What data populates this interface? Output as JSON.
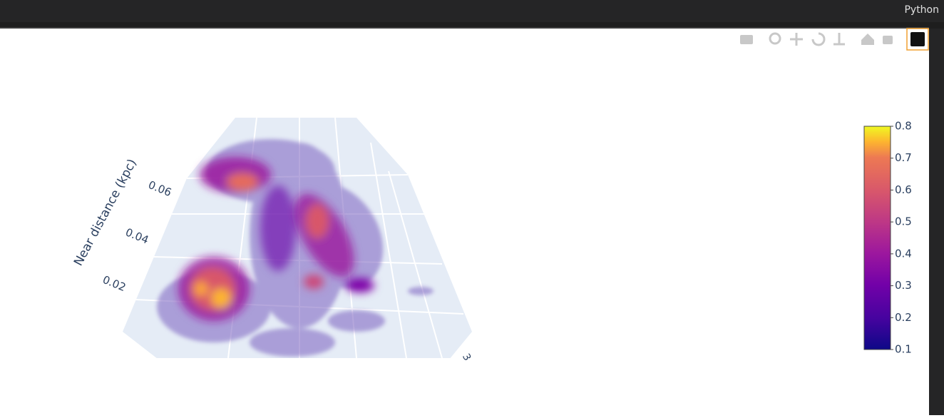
{
  "header": {
    "label": "Python"
  },
  "plot": {
    "axis_title": "Near distance (kpc)",
    "axis_ticks": [
      0.02,
      0.04,
      0.06
    ],
    "other_tick": "3",
    "colorbar": {
      "range": [
        0.1,
        0.8
      ],
      "ticks": [
        0.1,
        0.2,
        0.3,
        0.4,
        0.5,
        0.6,
        0.7,
        0.8
      ]
    }
  }
}
